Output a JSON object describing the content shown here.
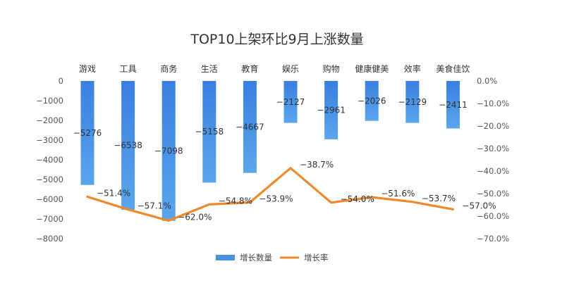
{
  "chart_data": {
    "type": "bar+line",
    "title": "TOP10上架环比9月上涨数量",
    "categories": [
      "游戏",
      "工具",
      "商务",
      "生活",
      "教育",
      "娱乐",
      "购物",
      "健康健美",
      "效率",
      "美食佳饮"
    ],
    "series": [
      {
        "name": "增长数量",
        "type": "bar",
        "axis": "left",
        "values": [
          -5276,
          -6538,
          -7098,
          -5158,
          -4667,
          -2127,
          -2961,
          -2026,
          -2129,
          -2411
        ],
        "labels": [
          "−5276",
          "−6538",
          "−7098",
          "−5158",
          "−4667",
          "−2127",
          "−2961",
          "−2026",
          "−2129",
          "−2411"
        ],
        "color": "#4a90e2"
      },
      {
        "name": "增长率",
        "type": "line",
        "axis": "right",
        "values": [
          -51.4,
          -57.1,
          -62.0,
          -54.8,
          -53.9,
          -38.7,
          -54.0,
          -51.6,
          -53.7,
          -57.0
        ],
        "labels": [
          "−51.4%",
          "−57.1%",
          "−62.0%",
          "−54.8%",
          "−53.9%",
          "−38.7%",
          "−54.0%",
          "−51.6%",
          "−53.7%",
          "−57.0%"
        ],
        "color": "#f0892b"
      }
    ],
    "y_left": {
      "ylim": [
        -8000,
        0
      ],
      "ticks": [
        0,
        -1000,
        -2000,
        -3000,
        -4000,
        -5000,
        -6000,
        -7000,
        -8000
      ],
      "tick_labels": [
        "0",
        "−1000",
        "−2000",
        "−3000",
        "−4000",
        "−5000",
        "−6000",
        "−7000",
        "−8000"
      ]
    },
    "y_right": {
      "ylim": [
        -70,
        0
      ],
      "ticks": [
        0,
        -10,
        -20,
        -30,
        -40,
        -50,
        -60,
        -70
      ],
      "tick_labels": [
        "0.0%",
        "−10.0%",
        "−20.0%",
        "−30.0%",
        "−40.0%",
        "−50.0%",
        "−60.0%",
        "−70.0%"
      ]
    },
    "legend_position": "bottom",
    "grid": false
  }
}
